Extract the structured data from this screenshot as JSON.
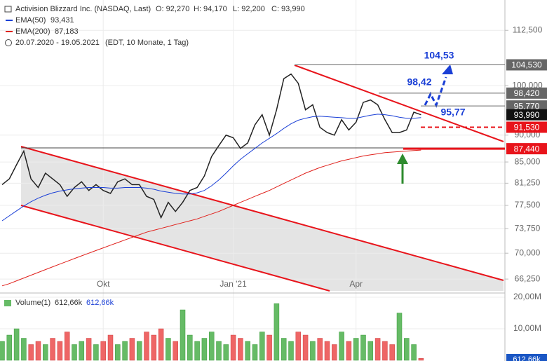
{
  "chart_data": {
    "type": "line",
    "title": "Activision Blizzard Inc. (NASDAQ, Last)",
    "ohlc": [
      "O: 92,270",
      "H: 94,170",
      "L: 92,200",
      "C: 93,990"
    ],
    "period": "20.07.2020 - 19.05.2021",
    "period_note": "(EDT, 10 Monate, 1 Tag)",
    "categories": [
      null,
      null,
      null,
      null,
      null,
      null,
      null,
      null,
      null,
      null,
      null,
      null,
      null,
      null,
      "Okt",
      null,
      null,
      null,
      null,
      null,
      null,
      null,
      null,
      null,
      null,
      null,
      null,
      null,
      null,
      null,
      null,
      null,
      "Jan '21",
      null,
      null,
      null,
      null,
      null,
      null,
      null,
      null,
      null,
      null,
      null,
      null,
      null,
      null,
      null,
      null,
      "Apr",
      null,
      null,
      null,
      null,
      null,
      null,
      null,
      null,
      null
    ],
    "series": [
      {
        "color": "#222222",
        "values": [
          81000,
          82000,
          84500,
          87000,
          82000,
          80500,
          83000,
          82000,
          81000,
          79000,
          80500,
          81500,
          80000,
          81000,
          80000,
          79500,
          81500,
          82000,
          81000,
          81000,
          79000,
          78500,
          75500,
          78000,
          76500,
          78000,
          80000,
          80500,
          82500,
          86000,
          88000,
          90000,
          89500,
          87500,
          88500,
          92000,
          94000,
          90000,
          95000,
          101500,
          102500,
          100500,
          95000,
          96000,
          91500,
          90500,
          90000,
          93000,
          91000,
          92500,
          96500,
          97000,
          96000,
          93000,
          90500,
          90500,
          91000,
          94500,
          93990
        ]
      },
      {
        "name": "EMA(50)",
        "last_label": "93,431",
        "color": "#1a3fd6",
        "values": [
          75000,
          75800,
          76600,
          77400,
          78100,
          78700,
          79200,
          79600,
          79900,
          80100,
          80300,
          80400,
          80500,
          80500,
          80500,
          80400,
          80400,
          80500,
          80500,
          80500,
          80400,
          80200,
          79900,
          79700,
          79500,
          79400,
          79400,
          79600,
          80000,
          80800,
          81800,
          83000,
          84300,
          85500,
          86500,
          87500,
          88500,
          89400,
          90300,
          91300,
          92200,
          92900,
          93300,
          93600,
          93700,
          93600,
          93500,
          93400,
          93300,
          93300,
          93600,
          93900,
          94100,
          94000,
          93800,
          93500,
          93300,
          93300,
          93431
        ]
      },
      {
        "name": "EMA(200)",
        "last_label": "87,183",
        "color": "#e0201b",
        "values": [
          65300,
          65600,
          66000,
          66400,
          66800,
          67200,
          67600,
          68000,
          68400,
          68800,
          69200,
          69600,
          70000,
          70400,
          70800,
          71200,
          71600,
          72000,
          72400,
          72800,
          73200,
          73500,
          73800,
          74100,
          74400,
          74700,
          75000,
          75300,
          75700,
          76100,
          76500,
          77000,
          77500,
          78000,
          78500,
          79000,
          79500,
          80000,
          80600,
          81200,
          81800,
          82400,
          83000,
          83500,
          84000,
          84400,
          84800,
          85200,
          85500,
          85800,
          86100,
          86300,
          86500,
          86700,
          86800,
          86900,
          87000,
          87100,
          87183
        ]
      }
    ],
    "ylim": [
      64600,
      120000
    ],
    "log_scale": true,
    "grid": true,
    "yticks": [
      {
        "value": 66250,
        "label": "66,250"
      },
      {
        "value": 70000,
        "label": "70,000"
      },
      {
        "value": 73750,
        "label": "73,750"
      },
      {
        "value": 77500,
        "label": "77,500"
      },
      {
        "value": 81250,
        "label": "81,250"
      },
      {
        "value": 85000,
        "label": "85,000"
      },
      {
        "value": 90000,
        "label": "90,000"
      },
      {
        "value": 100000,
        "label": "100,000"
      },
      {
        "value": 112500,
        "label": "112,500"
      }
    ],
    "levels": [
      {
        "value": 104530,
        "label": "104,530",
        "color": "#666666"
      },
      {
        "value": 98420,
        "label": "98,420",
        "color": "#666666"
      },
      {
        "value": 95770,
        "label": "95,770",
        "color": "#666666"
      },
      {
        "value": 93990,
        "label": "93,990",
        "color": "#111111"
      },
      {
        "value": 91530,
        "label": "91,530",
        "color": "#e8141b"
      },
      {
        "value": 87440,
        "label": "87,440",
        "color": "#e8141b"
      }
    ],
    "annotations": [
      "104,53",
      "98,42",
      "95,77"
    ],
    "volume": {
      "title": "Volume(1)",
      "legend_values": [
        "612,66k",
        "612,66k"
      ],
      "up_color": "#66bb66",
      "down_color": "#ee6666",
      "values": [
        6,
        8,
        10,
        7,
        5,
        6,
        5,
        7,
        6,
        9,
        5,
        6,
        7,
        5,
        6,
        8,
        5,
        6,
        7,
        6,
        9,
        8,
        10,
        7,
        6,
        16,
        8,
        6,
        7,
        9,
        6,
        5,
        8,
        7,
        6,
        5,
        9,
        8,
        18,
        7,
        6,
        9,
        8,
        6,
        7,
        6,
        5,
        9,
        6,
        7,
        8,
        6,
        7,
        6,
        5,
        15,
        7,
        5,
        0.61266
      ],
      "ylim": [
        0,
        20.9
      ],
      "yticks": [
        {
          "value": 10,
          "label": "10,00M"
        },
        {
          "value": 20,
          "label": "20,00M"
        }
      ]
    }
  }
}
